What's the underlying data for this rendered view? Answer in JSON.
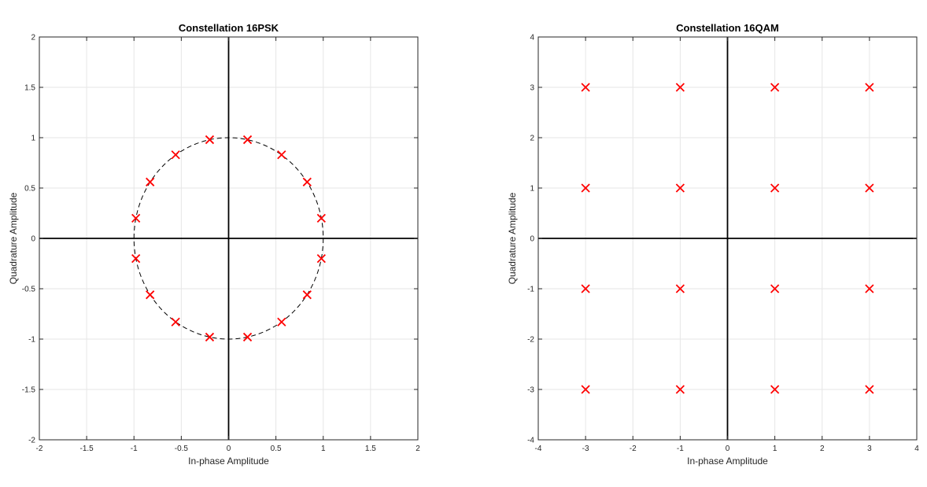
{
  "chart_data": [
    {
      "type": "scatter",
      "title": "Constellation 16PSK",
      "xlabel": "In-phase Amplitude",
      "ylabel": "Quadrature Amplitude",
      "xlim": [
        -2,
        2
      ],
      "ylim": [
        -2,
        2
      ],
      "xticks": [
        -2,
        -1.5,
        -1,
        -0.5,
        0,
        0.5,
        1,
        1.5,
        2
      ],
      "yticks": [
        -2,
        -1.5,
        -1,
        -0.5,
        0,
        0.5,
        1,
        1.5,
        2
      ],
      "xtick_labels": [
        "-2",
        "-1.5",
        "-1",
        "-0.5",
        "0",
        "0.5",
        "1",
        "1.5",
        "2"
      ],
      "ytick_labels": [
        "-2",
        "-1.5",
        "-1",
        "-0.5",
        "0",
        "0.5",
        "1",
        "1.5",
        "2"
      ],
      "grid": true,
      "unit_circle": true,
      "marker": "x",
      "marker_color": "#ff0000",
      "points": [
        {
          "x": 0.98,
          "y": 0.2
        },
        {
          "x": 0.83,
          "y": 0.56
        },
        {
          "x": 0.56,
          "y": 0.83
        },
        {
          "x": 0.2,
          "y": 0.98
        },
        {
          "x": -0.2,
          "y": 0.98
        },
        {
          "x": -0.56,
          "y": 0.83
        },
        {
          "x": -0.83,
          "y": 0.56
        },
        {
          "x": -0.98,
          "y": 0.2
        },
        {
          "x": -0.98,
          "y": -0.2
        },
        {
          "x": -0.83,
          "y": -0.56
        },
        {
          "x": -0.56,
          "y": -0.83
        },
        {
          "x": -0.2,
          "y": -0.98
        },
        {
          "x": 0.2,
          "y": -0.98
        },
        {
          "x": 0.56,
          "y": -0.83
        },
        {
          "x": 0.83,
          "y": -0.56
        },
        {
          "x": 0.98,
          "y": -0.2
        }
      ]
    },
    {
      "type": "scatter",
      "title": "Constellation 16QAM",
      "xlabel": "In-phase Amplitude",
      "ylabel": "Quadrature Amplitude",
      "xlim": [
        -4,
        4
      ],
      "ylim": [
        -4,
        4
      ],
      "xticks": [
        -4,
        -3,
        -2,
        -1,
        0,
        1,
        2,
        3,
        4
      ],
      "yticks": [
        -4,
        -3,
        -2,
        -1,
        0,
        1,
        2,
        3,
        4
      ],
      "xtick_labels": [
        "-4",
        "-3",
        "-2",
        "-1",
        "0",
        "1",
        "2",
        "3",
        "4"
      ],
      "ytick_labels": [
        "-4",
        "-3",
        "-2",
        "-1",
        "0",
        "1",
        "2",
        "3",
        "4"
      ],
      "grid": true,
      "unit_circle": false,
      "marker": "x",
      "marker_color": "#ff0000",
      "points": [
        {
          "x": -3,
          "y": 3
        },
        {
          "x": -1,
          "y": 3
        },
        {
          "x": 1,
          "y": 3
        },
        {
          "x": 3,
          "y": 3
        },
        {
          "x": -3,
          "y": 1
        },
        {
          "x": -1,
          "y": 1
        },
        {
          "x": 1,
          "y": 1
        },
        {
          "x": 3,
          "y": 1
        },
        {
          "x": -3,
          "y": -1
        },
        {
          "x": -1,
          "y": -1
        },
        {
          "x": 1,
          "y": -1
        },
        {
          "x": 3,
          "y": -1
        },
        {
          "x": -3,
          "y": -3
        },
        {
          "x": -1,
          "y": -3
        },
        {
          "x": 1,
          "y": -3
        },
        {
          "x": 3,
          "y": -3
        }
      ]
    }
  ]
}
